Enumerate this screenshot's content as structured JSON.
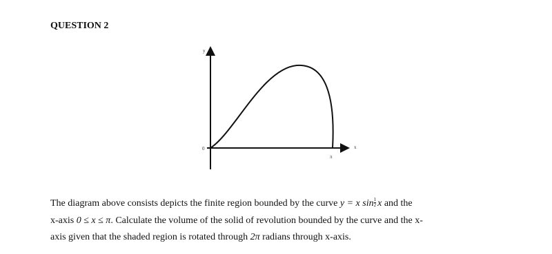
{
  "header": {
    "title": "QUESTION 2"
  },
  "diagram": {
    "y_label": "y",
    "origin_label": "0",
    "pi_label": "π",
    "x_label": "x"
  },
  "paragraph": {
    "line1_text": "The diagram above consists depicts the finite region bounded by the curve",
    "line1_math": "y = x sin",
    "line1_exp_num": "1",
    "line1_exp_den": "2",
    "line1_math_end": "x",
    "line1_tail": "and the",
    "line2_head": "x-axis",
    "line2_math": "0 ≤ x ≤ π",
    "line2_text": ". Calculate the volume of the solid of revolution bounded by the curve and the x-",
    "line3_text": "axis given that the shaded region is rotated through",
    "line3_math": "2π",
    "line3_tail": "radians through x-axis."
  }
}
